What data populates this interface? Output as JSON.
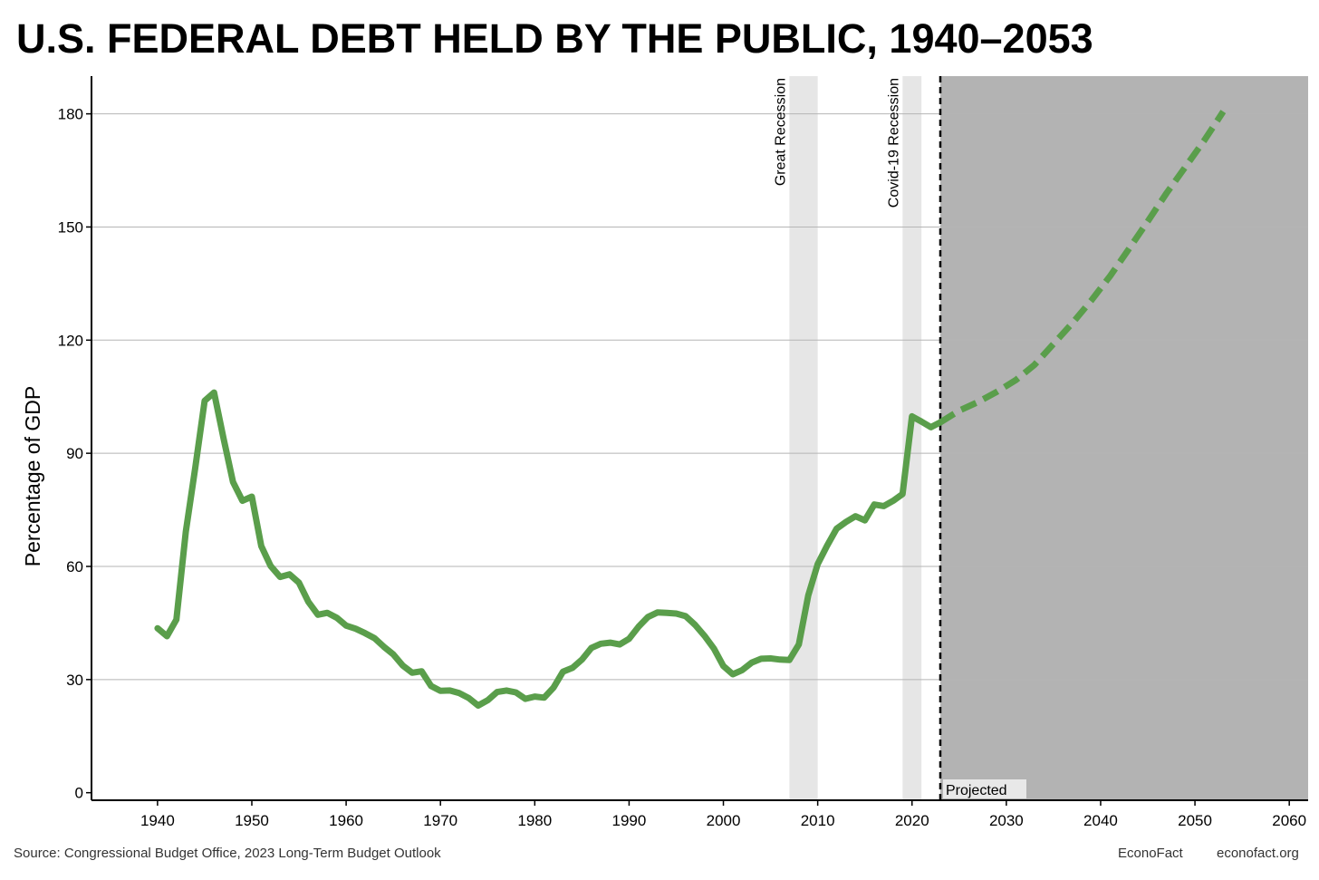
{
  "title": "U.S. FEDERAL DEBT HELD BY THE PUBLIC, 1940–2053",
  "source": "Source: Congressional Budget Office, 2023 Long-Term Budget Outlook",
  "brand": "EconoFact",
  "site": "econofact.org",
  "colors": {
    "line": "#5a9e4b",
    "recession": "#e6e6e6",
    "projected": "#b3b3b3"
  },
  "chart_data": {
    "type": "line",
    "title": "U.S. FEDERAL DEBT HELD BY THE PUBLIC, 1940–2053",
    "xlabel": "",
    "ylabel": "Percentage of GDP",
    "xlim": [
      1933,
      2062
    ],
    "ylim": [
      -2,
      190
    ],
    "xticks": [
      1940,
      1950,
      1960,
      1970,
      1980,
      1990,
      2000,
      2010,
      2020,
      2030,
      2040,
      2050,
      2060
    ],
    "yticks": [
      0,
      30,
      60,
      90,
      120,
      150,
      180
    ],
    "grid": "horizontal",
    "legend": "none",
    "series": [
      {
        "style": "solid",
        "x": [
          1940,
          1941,
          1942,
          1943,
          1944,
          1945,
          1946,
          1947,
          1948,
          1949,
          1950,
          1951,
          1952,
          1953,
          1954,
          1955,
          1956,
          1957,
          1958,
          1959,
          1960,
          1961,
          1962,
          1963,
          1964,
          1965,
          1966,
          1967,
          1968,
          1969,
          1970,
          1971,
          1972,
          1973,
          1974,
          1975,
          1976,
          1977,
          1978,
          1979,
          1980,
          1981,
          1982,
          1983,
          1984,
          1985,
          1986,
          1987,
          1988,
          1989,
          1990,
          1991,
          1992,
          1993,
          1994,
          1995,
          1996,
          1997,
          1998,
          1999,
          2000,
          2001,
          2002,
          2003,
          2004,
          2005,
          2006,
          2007,
          2008,
          2009,
          2010,
          2011,
          2012,
          2013,
          2014,
          2015,
          2016,
          2017,
          2018,
          2019,
          2020,
          2021,
          2022,
          2023
        ],
        "values": [
          43.6,
          41.5,
          45.9,
          69.2,
          86.1,
          103.9,
          106.1,
          93.9,
          82.4,
          77.4,
          78.5,
          65.4,
          60.1,
          57.2,
          57.9,
          55.7,
          50.6,
          47.2,
          47.7,
          46.4,
          44.3,
          43.5,
          42.3,
          41.0,
          38.7,
          36.7,
          33.7,
          31.8,
          32.2,
          28.3,
          27.0,
          27.1,
          26.4,
          25.1,
          23.1,
          24.5,
          26.7,
          27.1,
          26.6,
          24.9,
          25.5,
          25.2,
          27.9,
          32.1,
          33.1,
          35.3,
          38.4,
          39.5,
          39.8,
          39.3,
          40.8,
          44.0,
          46.6,
          47.8,
          47.7,
          47.5,
          46.8,
          44.5,
          41.6,
          38.2,
          33.6,
          31.4,
          32.5,
          34.5,
          35.5,
          35.6,
          35.3,
          35.2,
          39.3,
          52.3,
          60.6,
          65.5,
          70.0,
          71.8,
          73.3,
          72.2,
          76.4,
          76.0,
          77.4,
          79.2,
          99.8,
          98.4,
          96.9,
          98.2
        ]
      },
      {
        "style": "dashed",
        "x": [
          2023,
          2025,
          2027,
          2029,
          2031,
          2033,
          2035,
          2037,
          2039,
          2041,
          2043,
          2045,
          2047,
          2049,
          2051,
          2053
        ],
        "values": [
          98.2,
          101.3,
          103.6,
          106.3,
          109.4,
          113.5,
          119.0,
          124.5,
          130.5,
          137.0,
          144.2,
          151.5,
          159.0,
          166.0,
          173.0,
          180.6
        ]
      }
    ],
    "shaded_regions": [
      {
        "label": "Great Recession",
        "from": 2007,
        "to": 2010
      },
      {
        "label": "Covid-19 Recession",
        "from": 2019,
        "to": 2021
      },
      {
        "label": "Projected",
        "from": 2023,
        "to": 2062
      }
    ],
    "projection_start": 2023
  }
}
